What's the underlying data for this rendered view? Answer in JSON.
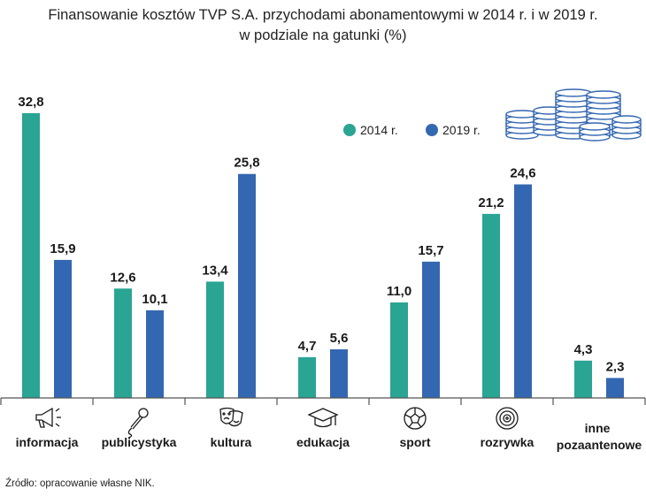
{
  "title_line1": "Finansowanie kosztów TVP S.A. przychodami abonamentowymi w 2014 r. i w 2019 r.",
  "title_line2": "w podziale na gatunki (%)",
  "source": "Źródło: opracowanie własne NIK.",
  "colors": {
    "s2014": "#2aa493",
    "s2019": "#3467b1",
    "axis": "#555555"
  },
  "chart_data": {
    "type": "bar",
    "title": "Finansowanie kosztów TVP S.A. przychodami abonamentowymi w 2014 r. i w 2019 r. w podziale na gatunki (%)",
    "categories": [
      "informacja",
      "publicystyka",
      "kultura",
      "edukacja",
      "sport",
      "rozrywka",
      "inne pozaantenowe"
    ],
    "category_icons": [
      "megaphone-icon",
      "microphone-icon",
      "theater-masks-icon",
      "graduation-cap-icon",
      "soccer-ball-icon",
      "vinyl-record-icon",
      ""
    ],
    "series": [
      {
        "name": "2014 r.",
        "values": [
          32.8,
          12.6,
          13.4,
          4.7,
          11.0,
          21.2,
          4.3
        ],
        "labels": [
          "32,8",
          "12,6",
          "13,4",
          "4,7",
          "11,0",
          "21,2",
          "4,3"
        ]
      },
      {
        "name": "2019 r.",
        "values": [
          15.9,
          10.1,
          25.8,
          5.6,
          15.7,
          24.6,
          2.3
        ],
        "labels": [
          "15,9",
          "10,1",
          "25,8",
          "5,6",
          "15,7",
          "24,6",
          "2,3"
        ]
      }
    ],
    "xlabel": "",
    "ylabel": "",
    "ylim": [
      0,
      33
    ],
    "grid": false,
    "legend": "top-right"
  }
}
